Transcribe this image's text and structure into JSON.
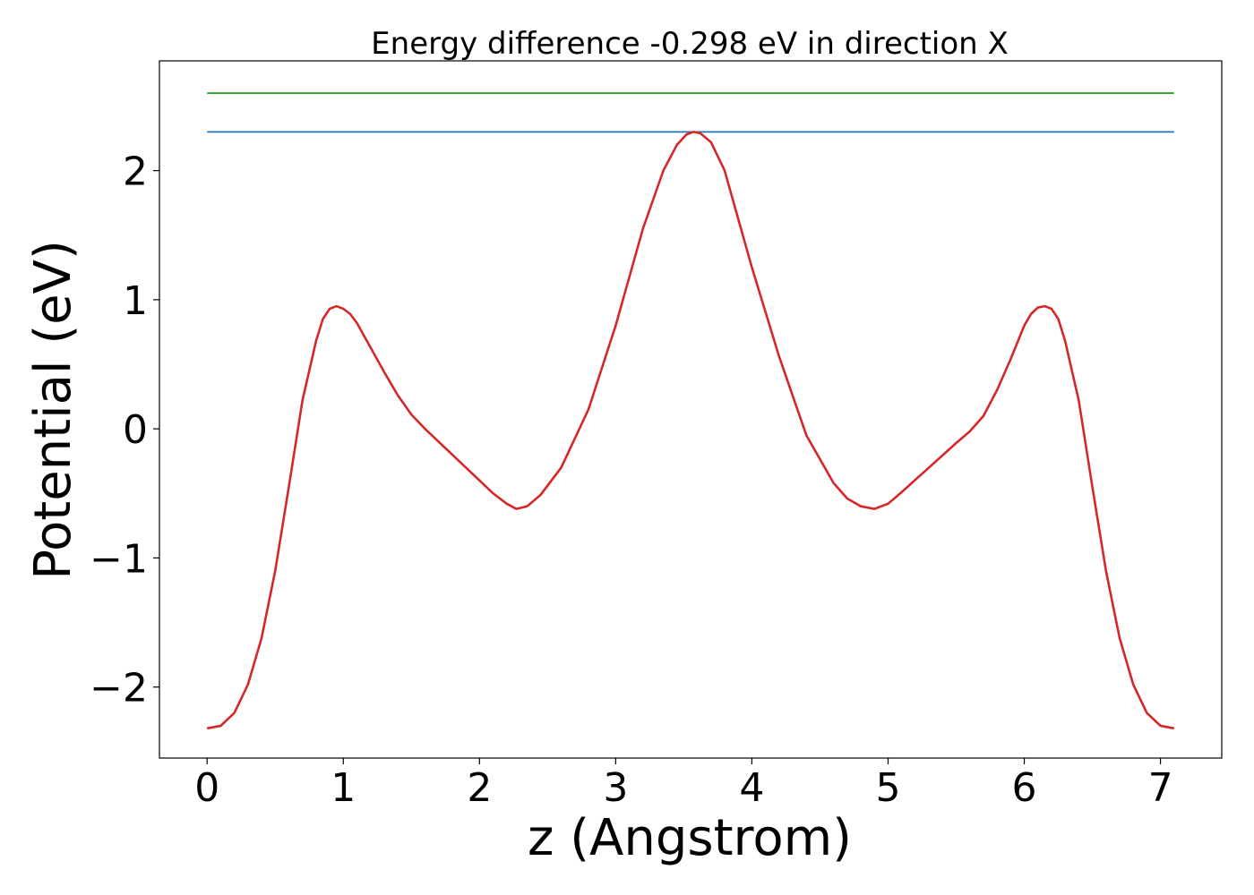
{
  "chart_data": {
    "type": "line",
    "title": "Energy difference -0.298 eV in direction X",
    "xlabel": "z (Angstrom)",
    "ylabel": "Potential (eV)",
    "xlim": [
      -0.35,
      7.45
    ],
    "ylim": [
      -2.55,
      2.85
    ],
    "xticks": [
      0,
      1,
      2,
      3,
      4,
      5,
      6,
      7
    ],
    "xtick_labels": [
      "0",
      "1",
      "2",
      "3",
      "4",
      "5",
      "6",
      "7"
    ],
    "yticks": [
      -2,
      -1,
      0,
      1,
      2
    ],
    "ytick_labels": [
      "−2",
      "−1",
      "0",
      "1",
      "2"
    ],
    "grid": false,
    "series": [
      {
        "color": "#2ca02c",
        "x": [
          0,
          7.1
        ],
        "y": [
          2.6,
          2.6
        ]
      },
      {
        "color": "#1f77b4",
        "x": [
          0,
          7.1
        ],
        "y": [
          2.3,
          2.3
        ]
      },
      {
        "color": "#d62728",
        "x": [
          0,
          0.1,
          0.2,
          0.3,
          0.4,
          0.5,
          0.6,
          0.7,
          0.8,
          0.85,
          0.9,
          0.95,
          1.0,
          1.05,
          1.1,
          1.2,
          1.3,
          1.4,
          1.5,
          1.6,
          1.8,
          2.0,
          2.1,
          2.2,
          2.27,
          2.35,
          2.45,
          2.6,
          2.8,
          3.0,
          3.2,
          3.35,
          3.45,
          3.52,
          3.57,
          3.62,
          3.7,
          3.8,
          4.0,
          4.2,
          4.4,
          4.6,
          4.7,
          4.8,
          4.9,
          5.0,
          5.1,
          5.3,
          5.5,
          5.6,
          5.7,
          5.8,
          5.9,
          6.0,
          6.05,
          6.1,
          6.15,
          6.2,
          6.25,
          6.3,
          6.35,
          6.4,
          6.5,
          6.6,
          6.7,
          6.8,
          6.9,
          7.0,
          7.1
        ],
        "y": [
          -2.32,
          -2.3,
          -2.2,
          -1.98,
          -1.62,
          -1.1,
          -0.45,
          0.22,
          0.68,
          0.85,
          0.93,
          0.95,
          0.93,
          0.89,
          0.82,
          0.63,
          0.44,
          0.26,
          0.11,
          0.0,
          -0.2,
          -0.4,
          -0.5,
          -0.58,
          -0.62,
          -0.6,
          -0.51,
          -0.3,
          0.15,
          0.8,
          1.55,
          2.0,
          2.2,
          2.28,
          2.3,
          2.29,
          2.22,
          2.0,
          1.25,
          0.56,
          -0.05,
          -0.42,
          -0.54,
          -0.6,
          -0.62,
          -0.58,
          -0.49,
          -0.3,
          -0.11,
          -0.02,
          0.1,
          0.3,
          0.54,
          0.8,
          0.89,
          0.94,
          0.95,
          0.93,
          0.85,
          0.68,
          0.45,
          0.22,
          -0.45,
          -1.1,
          -1.62,
          -1.98,
          -2.2,
          -2.3,
          -2.32
        ]
      }
    ]
  }
}
